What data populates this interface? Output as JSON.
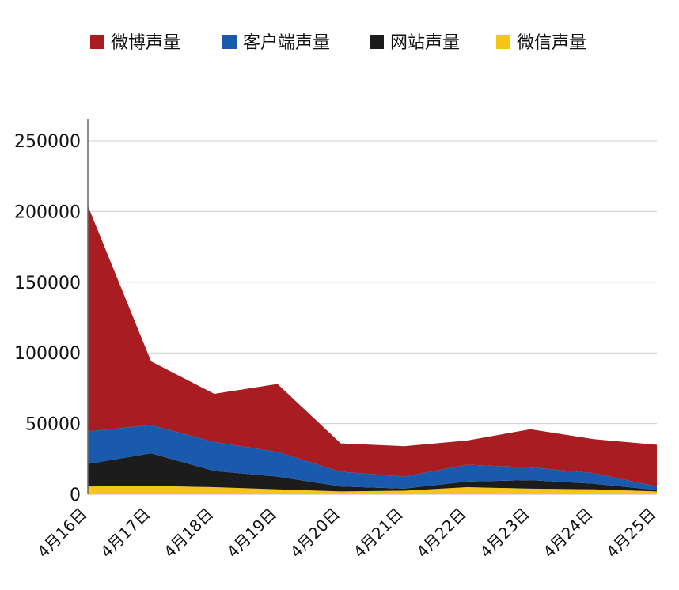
{
  "chart_data": {
    "type": "area",
    "stacked": true,
    "categories": [
      "4月16日",
      "4月17日",
      "4月18日",
      "4月19日",
      "4月20日",
      "4月21日",
      "4月22日",
      "4月23日",
      "4月24日",
      "4月25日"
    ],
    "series": [
      {
        "name": "微信声量",
        "color": "#f5c518",
        "values": [
          5500,
          6000,
          5000,
          3500,
          2000,
          2500,
          5000,
          4000,
          3500,
          2000
        ]
      },
      {
        "name": "网站声量",
        "color": "#1c1c1c",
        "values": [
          16000,
          23000,
          11500,
          9000,
          3500,
          1500,
          4000,
          6000,
          4000,
          1000
        ]
      },
      {
        "name": "客户端声量",
        "color": "#1a5aad",
        "values": [
          23000,
          20000,
          20500,
          17500,
          10500,
          8500,
          12000,
          9000,
          7500,
          2500
        ]
      },
      {
        "name": "微博声量",
        "color": "#a81c22",
        "values": [
          159500,
          45000,
          34000,
          48000,
          20000,
          21500,
          17000,
          27000,
          24000,
          29500
        ]
      }
    ],
    "legend_order": [
      "微博声量",
      "客户端声量",
      "网站声量",
      "微信声量"
    ],
    "legend_position": "top",
    "y_ticks": [
      0,
      50000,
      100000,
      150000,
      200000,
      250000
    ],
    "ylim": [
      0,
      265000
    ],
    "grid": true,
    "title": "",
    "xlabel": "",
    "ylabel": ""
  }
}
